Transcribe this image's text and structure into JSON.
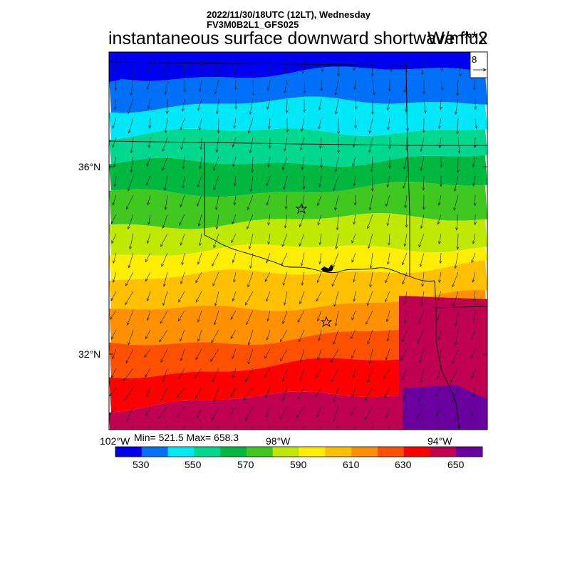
{
  "header": {
    "line1": "2022/11/30/18UTC (12LT), Wednesday",
    "line2": "FV3M0B2L1_GFS025"
  },
  "title": "instantaneous surface downward shortwave flux",
  "units": "W/m**2",
  "vector_reference": "8",
  "axes": {
    "lat_labels": [
      "36°N",
      "32°N"
    ],
    "lon_labels": [
      "102°W",
      "98°W",
      "94°W"
    ]
  },
  "stats": "Min= 521.5 Max= 658.3",
  "colorbar": {
    "colors": [
      "#0000f0",
      "#0070f8",
      "#00e8f8",
      "#00d890",
      "#00b840",
      "#40c820",
      "#c0e800",
      "#ffee00",
      "#ffc000",
      "#ff9000",
      "#ff5000",
      "#ff0000",
      "#c00050",
      "#6a00a0"
    ],
    "tick_labels": [
      "530",
      "550",
      "570",
      "590",
      "610",
      "630",
      "650"
    ]
  },
  "markers": [
    "star-marker-north",
    "star-marker-south"
  ]
}
